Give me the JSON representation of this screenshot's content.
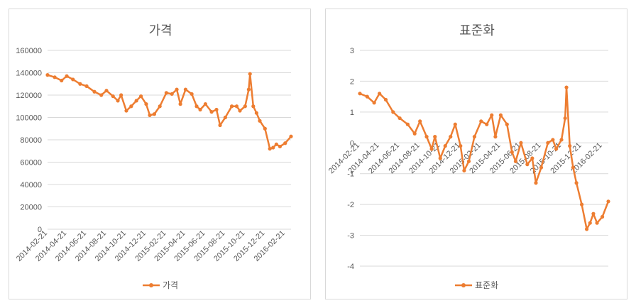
{
  "chart_data": [
    {
      "type": "line",
      "title": "가격",
      "series": [
        {
          "name": "가격",
          "color": "#ED7D31"
        }
      ],
      "ylim": [
        0,
        160000
      ],
      "yticks": [
        0,
        20000,
        40000,
        60000,
        80000,
        100000,
        120000,
        140000,
        160000
      ],
      "ytick_labels": [
        "0",
        "20000",
        "40000",
        "60000",
        "80000",
        "100000",
        "120000",
        "140000",
        "160000"
      ],
      "xlabels": [
        "2014-02-21",
        "2014-04-21",
        "2014-06-21",
        "2014-08-21",
        "2014-10-21",
        "2014-12-21",
        "2015-02-21",
        "2015-04-21",
        "2015-06-21",
        "2015-08-21",
        "2015-10-21",
        "2015-12-21",
        "2016-02-21"
      ],
      "x_dates": [
        "2014-02-21",
        "2014-03-15",
        "2014-04-05",
        "2014-04-21",
        "2014-05-10",
        "2014-06-01",
        "2014-06-21",
        "2014-07-15",
        "2014-08-05",
        "2014-08-21",
        "2014-09-10",
        "2014-09-25",
        "2014-10-05",
        "2014-10-21",
        "2014-11-05",
        "2014-11-21",
        "2014-12-05",
        "2014-12-21",
        "2015-01-01",
        "2015-01-15",
        "2015-02-01",
        "2015-02-21",
        "2015-03-10",
        "2015-03-25",
        "2015-04-05",
        "2015-04-21",
        "2015-05-10",
        "2015-05-25",
        "2015-06-05",
        "2015-06-21",
        "2015-07-10",
        "2015-07-25",
        "2015-08-05",
        "2015-08-21",
        "2015-09-10",
        "2015-09-25",
        "2015-10-05",
        "2015-10-21",
        "2015-11-01",
        "2015-11-05",
        "2015-11-15",
        "2015-11-25",
        "2015-12-05",
        "2015-12-21",
        "2016-01-05",
        "2016-01-15",
        "2016-01-25",
        "2016-02-05",
        "2016-02-21",
        "2016-03-10"
      ],
      "values": [
        138000,
        136000,
        133000,
        137000,
        134000,
        130000,
        128000,
        123000,
        120000,
        124000,
        119000,
        115000,
        120000,
        106000,
        110000,
        115000,
        119000,
        112000,
        102000,
        103000,
        110000,
        122000,
        121000,
        125000,
        112000,
        125000,
        121000,
        110000,
        107000,
        112000,
        105000,
        107000,
        93000,
        100000,
        110000,
        110000,
        106000,
        110000,
        125000,
        139000,
        110000,
        104000,
        97000,
        90000,
        72000,
        73000,
        76000,
        74000,
        77000,
        83000
      ]
    },
    {
      "type": "line",
      "title": "표준화",
      "series": [
        {
          "name": "표준화",
          "color": "#ED7D31"
        }
      ],
      "ylim": [
        -4,
        3
      ],
      "yticks": [
        -4,
        -3,
        -2,
        -1,
        0,
        1,
        2,
        3
      ],
      "ytick_labels": [
        "-4",
        "-3",
        "-2",
        "-1",
        "0",
        "1",
        "2",
        "3"
      ],
      "xlabels": [
        "2014-02-21",
        "2014-04-21",
        "2014-06-21",
        "2014-08-21",
        "2014-10-21",
        "2014-12-21",
        "2015-02-21",
        "2015-04-21",
        "2015-06-21",
        "2015-08-21",
        "2015-10-21",
        "2015-12-21",
        "2016-02-21"
      ],
      "x_dates": [
        "2014-02-21",
        "2014-03-15",
        "2014-04-05",
        "2014-04-21",
        "2014-05-10",
        "2014-06-01",
        "2014-06-21",
        "2014-07-15",
        "2014-08-05",
        "2014-08-21",
        "2014-09-10",
        "2014-09-25",
        "2014-10-05",
        "2014-10-21",
        "2014-11-05",
        "2014-11-21",
        "2014-12-05",
        "2014-12-21",
        "2015-01-01",
        "2015-01-15",
        "2015-02-01",
        "2015-02-21",
        "2015-03-10",
        "2015-03-25",
        "2015-04-05",
        "2015-04-21",
        "2015-05-10",
        "2015-05-25",
        "2015-06-05",
        "2015-06-21",
        "2015-07-10",
        "2015-07-25",
        "2015-08-05",
        "2015-08-21",
        "2015-09-10",
        "2015-09-25",
        "2015-10-05",
        "2015-10-21",
        "2015-11-01",
        "2015-11-05",
        "2015-11-15",
        "2015-11-25",
        "2015-12-05",
        "2015-12-21",
        "2016-01-05",
        "2016-01-15",
        "2016-01-25",
        "2016-02-05",
        "2016-02-21",
        "2016-03-10"
      ],
      "values": [
        1.6,
        1.5,
        1.3,
        1.6,
        1.4,
        1.0,
        0.8,
        0.6,
        0.3,
        0.7,
        0.2,
        -0.2,
        0.2,
        -0.5,
        -0.1,
        0.2,
        0.6,
        -0.1,
        -0.9,
        -0.6,
        0.2,
        0.7,
        0.6,
        0.9,
        0.2,
        0.9,
        0.6,
        -0.3,
        -0.6,
        0.0,
        -0.7,
        -0.5,
        -1.3,
        -0.8,
        0.0,
        0.1,
        -0.2,
        0.1,
        0.8,
        1.8,
        -0.1,
        -0.8,
        -1.3,
        -2.0,
        -2.8,
        -2.6,
        -2.3,
        -2.6,
        -2.4,
        -1.9
      ]
    }
  ]
}
